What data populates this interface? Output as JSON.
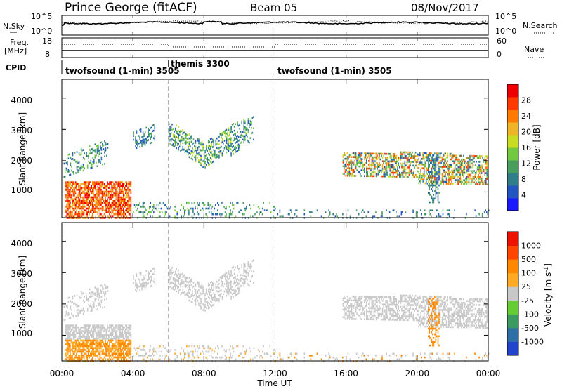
{
  "header": {
    "station": "Prince George (fitACF)",
    "beam": "Beam 05",
    "date": "08/Nov/2017"
  },
  "strips": {
    "nsky_label": "N.Sky",
    "nsky_ticks": [
      "10^5",
      "10^0"
    ],
    "nsearch_label": "N.Search",
    "nsearch_ticks": [
      "10^5",
      "10^0"
    ],
    "freq_label_1": "Freq.",
    "freq_label_2": "[MHz]",
    "freq_ticks": [
      "18",
      "8"
    ],
    "nave_label": "Nave",
    "nave_ticks": [
      "60",
      "0"
    ],
    "cpid_label": "CPID"
  },
  "cpid_segments": [
    {
      "start_hour": 0,
      "label": "twofsound (1-min) 3505"
    },
    {
      "start_hour": 6,
      "label": "themis 3300"
    },
    {
      "start_hour": 12,
      "label": "twofsound (1-min) 3505"
    }
  ],
  "chart_data": [
    {
      "type": "heatmap",
      "panel": "power",
      "ylabel": "Slant Range [km]",
      "xlabel": "Time UT",
      "ylim": [
        180,
        4600
      ],
      "y_ticks": [
        1000,
        2000,
        3000,
        4000
      ],
      "x_ticks_hours": [
        0,
        4,
        8,
        12,
        16,
        20,
        24
      ],
      "x_tick_labels": [
        "00:00",
        "04:00",
        "08:00",
        "12:00",
        "16:00",
        "20:00",
        "00:00"
      ],
      "xlim_hours": [
        0,
        24
      ],
      "colorbar": {
        "label": "Power [dB]",
        "tick_labels": [
          "4",
          "8",
          "12",
          "16",
          "20",
          "24",
          "28"
        ],
        "colors": [
          "#1a1aff",
          "#2255c0",
          "#2f7f8a",
          "#4a9e5c",
          "#72c840",
          "#c8dc22",
          "#f0b428",
          "#ff7a00",
          "#ff3a00",
          "#ee0000"
        ]
      }
    },
    {
      "type": "heatmap",
      "panel": "velocity",
      "ylabel": "Slant Range [km]",
      "xlabel": "Time UT",
      "ylim": [
        180,
        4600
      ],
      "y_ticks": [
        1000,
        2000,
        3000,
        4000
      ],
      "x_ticks_hours": [
        0,
        4,
        8,
        12,
        16,
        20,
        24
      ],
      "xlim_hours": [
        0,
        24
      ],
      "colorbar": {
        "label": "Velocity [m s^-1]",
        "tick_labels": [
          "1000",
          "500",
          "100",
          "25",
          "-25",
          "-100",
          "-500",
          "-1000"
        ],
        "colors": [
          "#2244cc",
          "#2f6fa8",
          "#3a9a60",
          "#66cc33",
          "#c8c8c8",
          "#ffaa22",
          "#ff8800",
          "#ff4400",
          "#ee1100"
        ]
      }
    }
  ]
}
